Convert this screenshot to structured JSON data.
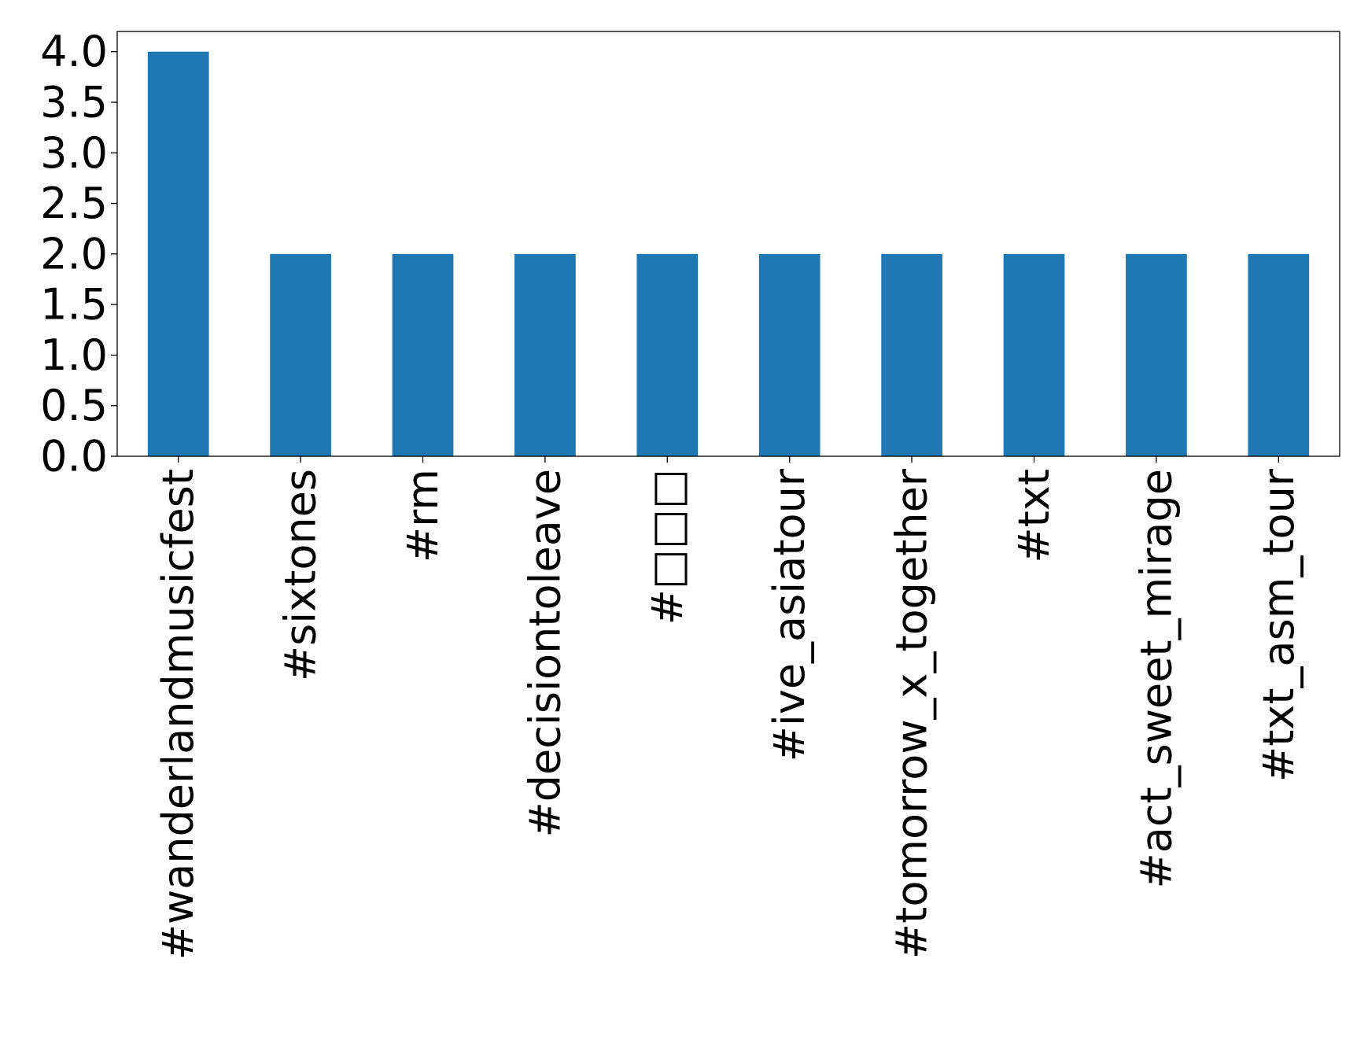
{
  "chart_data": {
    "type": "bar",
    "title": "",
    "xlabel": "",
    "ylabel": "",
    "categories": [
      "#wanderlandmusicfest",
      "#sixtones",
      "#rm",
      "#decisiontoleave",
      "#□□□",
      "#ive_asiatour",
      "#tomorrow_x_together",
      "#txt",
      "#act_sweet_mirage",
      "#txt_asm_tour"
    ],
    "values": [
      4,
      2,
      2,
      2,
      2,
      2,
      2,
      2,
      2,
      2
    ],
    "ylim": [
      0,
      4.2
    ],
    "yticks": [
      "0.0",
      "0.5",
      "1.0",
      "1.5",
      "2.0",
      "2.5",
      "3.0",
      "3.5",
      "4.0"
    ],
    "grid": false,
    "legend": "none",
    "bar_color": "#1f77b4"
  }
}
